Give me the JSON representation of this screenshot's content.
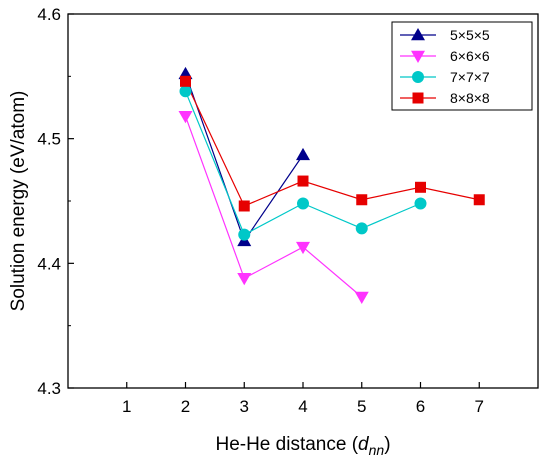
{
  "chart_data": {
    "type": "line",
    "xlabel": "He-He distance (",
    "xlabel_var": "d",
    "xlabel_sub": "nn",
    "xlabel_end": ")",
    "ylabel": "Solution energy (eV/atom)",
    "xlim": [
      0,
      8
    ],
    "ylim": [
      4.3,
      4.6
    ],
    "x_ticks": [
      1,
      2,
      3,
      4,
      5,
      6,
      7
    ],
    "y_ticks": [
      4.3,
      4.4,
      4.5,
      4.6
    ],
    "y_tick_labels": [
      "4.3",
      "4.4",
      "4.5",
      "4.6"
    ],
    "grid": false,
    "legend_position": "top-right",
    "series": [
      {
        "name": "5×5×5",
        "color": "#00008b",
        "marker": "triangle-up",
        "x": [
          2,
          3,
          4
        ],
        "y": [
          4.552,
          4.418,
          4.487
        ]
      },
      {
        "name": "6×6×6",
        "color": "#ff33ff",
        "marker": "triangle-down",
        "x": [
          2,
          3,
          4,
          5
        ],
        "y": [
          4.518,
          4.388,
          4.413,
          4.373
        ]
      },
      {
        "name": "7×7×7",
        "color": "#00c8c8",
        "marker": "circle",
        "x": [
          2,
          3,
          4,
          5,
          6
        ],
        "y": [
          4.538,
          4.423,
          4.448,
          4.428,
          4.448
        ]
      },
      {
        "name": "8×8×8",
        "color": "#e60000",
        "marker": "square",
        "x": [
          2,
          3,
          4,
          5,
          6,
          7
        ],
        "y": [
          4.546,
          4.446,
          4.466,
          4.451,
          4.461,
          4.451
        ]
      }
    ]
  }
}
